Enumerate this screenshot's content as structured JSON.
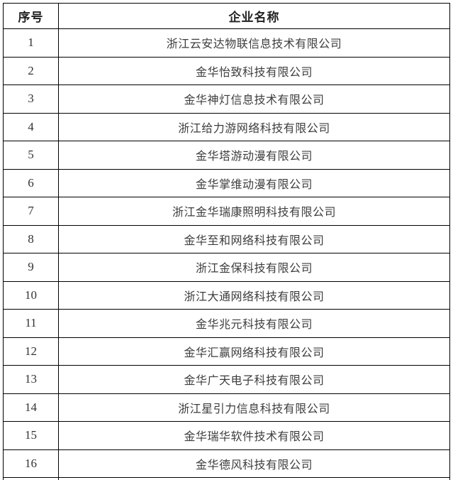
{
  "colors": {
    "background": "#ffffff",
    "border": "#000000",
    "header_text": "#222222",
    "body_text": "#3d3d3d"
  },
  "table": {
    "headers": [
      "序号",
      "企业名称"
    ],
    "rows": [
      {
        "no": "1",
        "name": "浙江云安达物联信息技术有限公司"
      },
      {
        "no": "2",
        "name": "金华怡致科技有限公司"
      },
      {
        "no": "3",
        "name": "金华神灯信息技术有限公司"
      },
      {
        "no": "4",
        "name": "浙江给力游网络科技有限公司"
      },
      {
        "no": "5",
        "name": "金华塔游动漫有限公司"
      },
      {
        "no": "6",
        "name": "金华掌维动漫有限公司"
      },
      {
        "no": "7",
        "name": "浙江金华瑞康照明科技有限公司"
      },
      {
        "no": "8",
        "name": "金华至和网络科技有限公司"
      },
      {
        "no": "9",
        "name": "浙江金保科技有限公司"
      },
      {
        "no": "10",
        "name": "浙江大通网络科技有限公司"
      },
      {
        "no": "11",
        "name": "金华兆元科技有限公司"
      },
      {
        "no": "12",
        "name": "金华汇赢网络科技有限公司"
      },
      {
        "no": "13",
        "name": "金华广天电子科技有限公司"
      },
      {
        "no": "14",
        "name": "浙江星引力信息科技有限公司"
      },
      {
        "no": "15",
        "name": "金华瑞华软件技术有限公司"
      },
      {
        "no": "16",
        "name": "金华德风科技有限公司"
      }
    ]
  }
}
